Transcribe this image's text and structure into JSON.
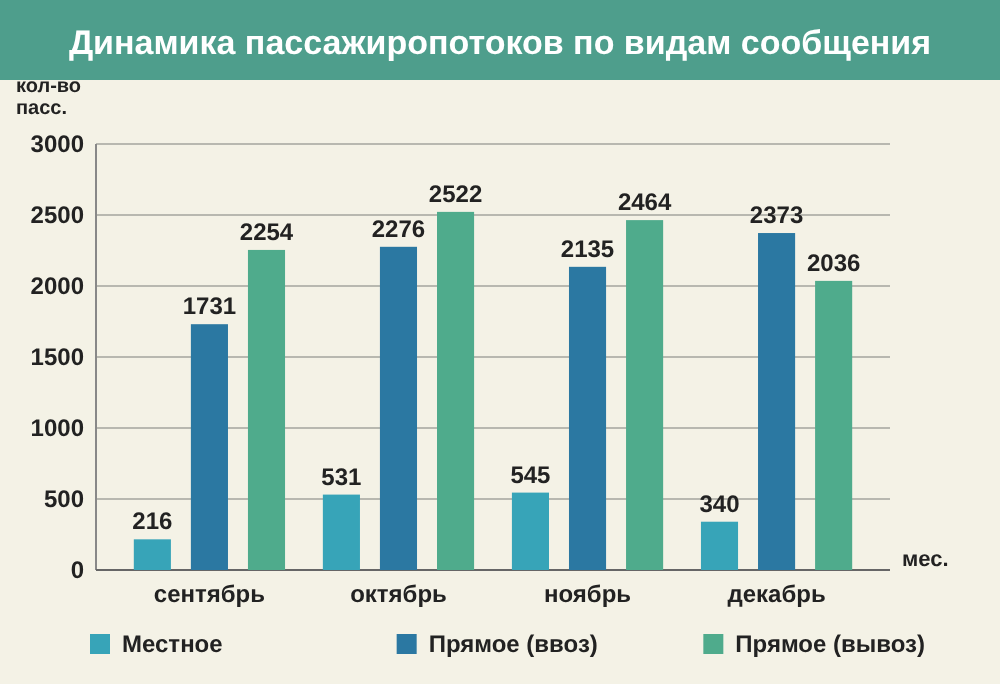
{
  "chart_data": {
    "type": "bar",
    "title": "Динамика пассажиропотоков по видам сообщения",
    "ylabel": "кол-во пасс.",
    "xlabel": "мес.",
    "categories": [
      "сентябрь",
      "октябрь",
      "ноябрь",
      "декабрь"
    ],
    "series": [
      {
        "name": "Местное",
        "color": "#37a4b8",
        "values": [
          216,
          531,
          545,
          340
        ]
      },
      {
        "name": "Прямое (ввоз)",
        "color": "#2b78a2",
        "values": [
          1731,
          2276,
          2135,
          2373
        ]
      },
      {
        "name": "Прямое (вывоз)",
        "color": "#4fab8c",
        "values": [
          2254,
          2522,
          2464,
          2036
        ]
      }
    ],
    "ylim": [
      0,
      3000
    ],
    "yticks": [
      0,
      500,
      1000,
      1500,
      2000,
      2500,
      3000
    ],
    "grid": "y",
    "legend": "bottom",
    "data_labels": true
  }
}
